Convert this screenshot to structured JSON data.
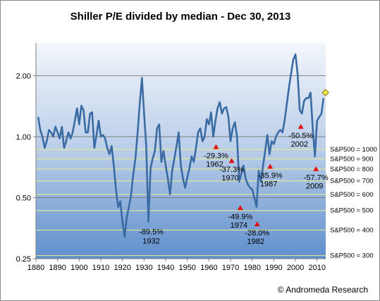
{
  "chart_data": {
    "type": "line",
    "title": "Shiller P/E divided by median - Dec 30, 2013",
    "credit": "© Andromeda Research",
    "y_scale": "log",
    "ylim": [
      0.25,
      2.9
    ],
    "xlim": [
      1880,
      2014
    ],
    "x_ticks": [
      1880,
      1890,
      1900,
      1910,
      1920,
      1930,
      1940,
      1950,
      1960,
      1970,
      1980,
      1990,
      2000,
      2010
    ],
    "y_ticks": [
      {
        "value": 0.25,
        "label": "0.25"
      },
      {
        "value": 0.5,
        "label": "0.50"
      },
      {
        "value": 1.0,
        "label": "1.00"
      },
      {
        "value": 2.0,
        "label": "2.00"
      }
    ],
    "sp_levels": [
      {
        "label": "S&P500 = 1000",
        "value": 0.865
      },
      {
        "label": "S&P500 = 900",
        "value": 0.778
      },
      {
        "label": "S&P500 = 800",
        "value": 0.692
      },
      {
        "label": "S&P500 = 700",
        "value": 0.605
      },
      {
        "label": "S&P500 = 600",
        "value": 0.519
      },
      {
        "label": "S&P500 = 500",
        "value": 0.432
      },
      {
        "label": "S&P500 = 400",
        "value": 0.346
      },
      {
        "label": "S&P500 = 300",
        "value": 0.259
      }
    ],
    "series": [
      {
        "color": "#3a6ba3",
        "points": [
          [
            1881,
            1.25
          ],
          [
            1882,
            1.08
          ],
          [
            1883,
            1.0
          ],
          [
            1884,
            0.88
          ],
          [
            1885,
            0.95
          ],
          [
            1886,
            1.08
          ],
          [
            1887,
            1.05
          ],
          [
            1888,
            1.0
          ],
          [
            1889,
            1.12
          ],
          [
            1890,
            1.05
          ],
          [
            1891,
            0.98
          ],
          [
            1892,
            1.12
          ],
          [
            1893,
            0.88
          ],
          [
            1894,
            0.95
          ],
          [
            1895,
            1.05
          ],
          [
            1896,
            0.98
          ],
          [
            1897,
            1.05
          ],
          [
            1898,
            1.2
          ],
          [
            1899,
            1.38
          ],
          [
            1900,
            1.15
          ],
          [
            1901,
            1.42
          ],
          [
            1902,
            1.35
          ],
          [
            1903,
            1.05
          ],
          [
            1904,
            1.05
          ],
          [
            1905,
            1.3
          ],
          [
            1906,
            1.32
          ],
          [
            1907,
            0.88
          ],
          [
            1908,
            1.02
          ],
          [
            1909,
            1.2
          ],
          [
            1910,
            1.0
          ],
          [
            1911,
            1.02
          ],
          [
            1912,
            0.98
          ],
          [
            1913,
            0.88
          ],
          [
            1914,
            0.82
          ],
          [
            1915,
            0.9
          ],
          [
            1916,
            0.72
          ],
          [
            1917,
            0.55
          ],
          [
            1918,
            0.45
          ],
          [
            1919,
            0.48
          ],
          [
            1920,
            0.38
          ],
          [
            1921,
            0.32
          ],
          [
            1922,
            0.4
          ],
          [
            1923,
            0.45
          ],
          [
            1924,
            0.52
          ],
          [
            1925,
            0.65
          ],
          [
            1926,
            0.78
          ],
          [
            1927,
            1.05
          ],
          [
            1928,
            1.45
          ],
          [
            1929,
            1.95
          ],
          [
            1930,
            1.3
          ],
          [
            1931,
            0.9
          ],
          [
            1932,
            0.38
          ],
          [
            1933,
            0.7
          ],
          [
            1934,
            0.78
          ],
          [
            1935,
            0.85
          ],
          [
            1936,
            1.1
          ],
          [
            1937,
            1.15
          ],
          [
            1938,
            0.75
          ],
          [
            1939,
            0.85
          ],
          [
            1940,
            0.72
          ],
          [
            1941,
            0.62
          ],
          [
            1942,
            0.52
          ],
          [
            1943,
            0.68
          ],
          [
            1944,
            0.78
          ],
          [
            1945,
            0.9
          ],
          [
            1946,
            1.05
          ],
          [
            1947,
            0.72
          ],
          [
            1948,
            0.62
          ],
          [
            1949,
            0.56
          ],
          [
            1950,
            0.63
          ],
          [
            1951,
            0.7
          ],
          [
            1952,
            0.8
          ],
          [
            1953,
            0.75
          ],
          [
            1954,
            0.88
          ],
          [
            1955,
            1.05
          ],
          [
            1956,
            1.1
          ],
          [
            1957,
            0.95
          ],
          [
            1958,
            1.0
          ],
          [
            1959,
            1.22
          ],
          [
            1960,
            1.15
          ],
          [
            1961,
            1.32
          ],
          [
            1962,
            1.0
          ],
          [
            1963,
            1.2
          ],
          [
            1964,
            1.38
          ],
          [
            1965,
            1.48
          ],
          [
            1966,
            1.3
          ],
          [
            1967,
            1.38
          ],
          [
            1968,
            1.4
          ],
          [
            1969,
            1.25
          ],
          [
            1970,
            0.95
          ],
          [
            1971,
            1.1
          ],
          [
            1972,
            1.18
          ],
          [
            1973,
            1.0
          ],
          [
            1974,
            0.6
          ],
          [
            1975,
            0.66
          ],
          [
            1976,
            0.72
          ],
          [
            1977,
            0.62
          ],
          [
            1978,
            0.58
          ],
          [
            1979,
            0.56
          ],
          [
            1980,
            0.55
          ],
          [
            1981,
            0.5
          ],
          [
            1982,
            0.45
          ],
          [
            1983,
            0.68
          ],
          [
            1984,
            0.6
          ],
          [
            1985,
            0.72
          ],
          [
            1986,
            0.85
          ],
          [
            1987,
            1.02
          ],
          [
            1988,
            0.82
          ],
          [
            1989,
            0.95
          ],
          [
            1990,
            0.92
          ],
          [
            1991,
            1.0
          ],
          [
            1992,
            1.05
          ],
          [
            1993,
            1.08
          ],
          [
            1994,
            1.05
          ],
          [
            1995,
            1.2
          ],
          [
            1996,
            1.45
          ],
          [
            1997,
            1.75
          ],
          [
            1998,
            2.05
          ],
          [
            1999,
            2.4
          ],
          [
            2000,
            2.55
          ],
          [
            2001,
            2.05
          ],
          [
            2002,
            1.35
          ],
          [
            2003,
            1.3
          ],
          [
            2004,
            1.5
          ],
          [
            2005,
            1.55
          ],
          [
            2006,
            1.55
          ],
          [
            2007,
            1.65
          ],
          [
            2008,
            1.1
          ],
          [
            2009,
            0.8
          ],
          [
            2010,
            1.2
          ],
          [
            2011,
            1.25
          ],
          [
            2012,
            1.3
          ],
          [
            2013,
            1.55
          ]
        ]
      }
    ],
    "current_marker": {
      "x": 2013.9,
      "y": 1.65,
      "color": "#f2e84a"
    },
    "annotations": [
      {
        "text": "-89.5%",
        "year": "1932",
        "x": 1932,
        "y": 0.38
      },
      {
        "text": "-29.3%",
        "year": "1962",
        "x": 1963.3,
        "y": 0.89
      },
      {
        "text": "-37.3%",
        "year": "1970",
        "x": 1970.5,
        "y": 0.76
      },
      {
        "text": "-49.9%",
        "year": "1974",
        "x": 1974.5,
        "y": 0.445
      },
      {
        "text": "-28.0%",
        "year": "1982",
        "x": 1982.3,
        "y": 0.37
      },
      {
        "text": "-35.9%",
        "year": "1987",
        "x": 1988.3,
        "y": 0.712
      },
      {
        "text": "-50.5%",
        "year": "2002",
        "x": 2002.5,
        "y": 1.12
      },
      {
        "text": "-57.7%",
        "year": "2009",
        "x": 2009.5,
        "y": 0.693
      }
    ]
  }
}
